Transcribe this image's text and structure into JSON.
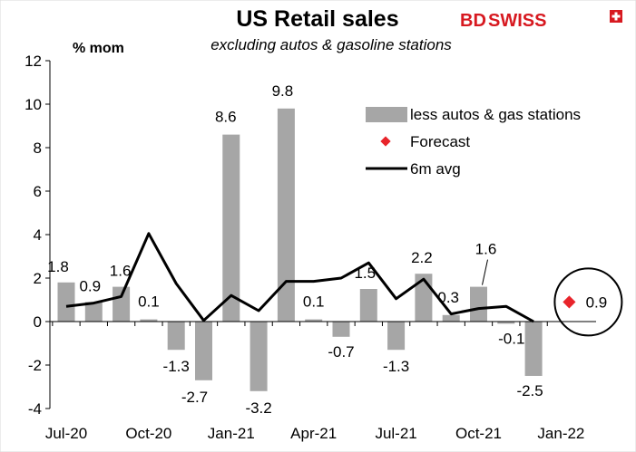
{
  "header": {
    "title": "US Retail sales",
    "subtitle": "excluding autos & gasoline stations",
    "ylabel": "% mom"
  },
  "logo": {
    "part1": "BD",
    "part2": "SWISS"
  },
  "chart_data": {
    "type": "bar",
    "title": "US Retail sales",
    "subtitle": "excluding autos & gasoline stations",
    "ylabel": "% mom",
    "ylim": [
      -4,
      12
    ],
    "yticks": [
      "-4",
      "-2",
      "0",
      "2",
      "4",
      "6",
      "8",
      "10",
      "12"
    ],
    "categories": [
      "Jul-20",
      "Aug-20",
      "Sep-20",
      "Oct-20",
      "Nov-20",
      "Dec-20",
      "Jan-21",
      "Feb-21",
      "Mar-21",
      "Apr-21",
      "May-21",
      "Jun-21",
      "Jul-21",
      "Aug-21",
      "Sep-21",
      "Oct-21",
      "Nov-21",
      "Dec-21",
      "Jan-22"
    ],
    "xtick_labels": [
      "Jul-20",
      "Oct-20",
      "Jan-21",
      "Apr-21",
      "Jul-21",
      "Oct-21",
      "Jan-22"
    ],
    "xtick_indices": [
      0,
      3,
      6,
      9,
      12,
      15,
      18
    ],
    "series": [
      {
        "name": "less autos & gas stations",
        "kind": "bar",
        "color": "#a6a6a6",
        "values": [
          1.8,
          0.9,
          1.6,
          0.1,
          -1.3,
          -2.7,
          8.6,
          -3.2,
          9.8,
          0.1,
          -0.7,
          1.5,
          -1.3,
          2.2,
          0.3,
          1.6,
          -0.1,
          -2.5,
          null
        ]
      },
      {
        "name": "Forecast",
        "kind": "marker",
        "color": "#e8242b",
        "values": [
          null,
          null,
          null,
          null,
          null,
          null,
          null,
          null,
          null,
          null,
          null,
          null,
          null,
          null,
          null,
          null,
          null,
          null,
          0.9
        ]
      },
      {
        "name": "6m avg",
        "kind": "line",
        "color": "#000000",
        "values": [
          0.7,
          0.85,
          1.15,
          4.05,
          1.75,
          0.05,
          1.2,
          0.5,
          1.85,
          1.85,
          2.0,
          2.7,
          1.05,
          1.95,
          0.35,
          0.6,
          0.7,
          0.0,
          null
        ]
      }
    ],
    "data_labels": [
      {
        "index": 0,
        "text": "1.8"
      },
      {
        "index": 1,
        "text": "0.9"
      },
      {
        "index": 2,
        "text": "1.6"
      },
      {
        "index": 3,
        "text": "0.1"
      },
      {
        "index": 4,
        "text": "-1.3"
      },
      {
        "index": 5,
        "text": "-2.7"
      },
      {
        "index": 6,
        "text": "8.6"
      },
      {
        "index": 7,
        "text": "-3.2"
      },
      {
        "index": 8,
        "text": "9.8"
      },
      {
        "index": 9,
        "text": "0.1"
      },
      {
        "index": 10,
        "text": "-0.7"
      },
      {
        "index": 11,
        "text": "1.5"
      },
      {
        "index": 12,
        "text": "-1.3"
      },
      {
        "index": 13,
        "text": "2.2"
      },
      {
        "index": 14,
        "text": "0.3"
      },
      {
        "index": 15,
        "text": "1.6"
      },
      {
        "index": 16,
        "text": "-0.1"
      },
      {
        "index": 17,
        "text": "-2.5"
      },
      {
        "index": 18,
        "text": "0.9"
      }
    ],
    "grid": false,
    "legend_position": "top-right"
  }
}
